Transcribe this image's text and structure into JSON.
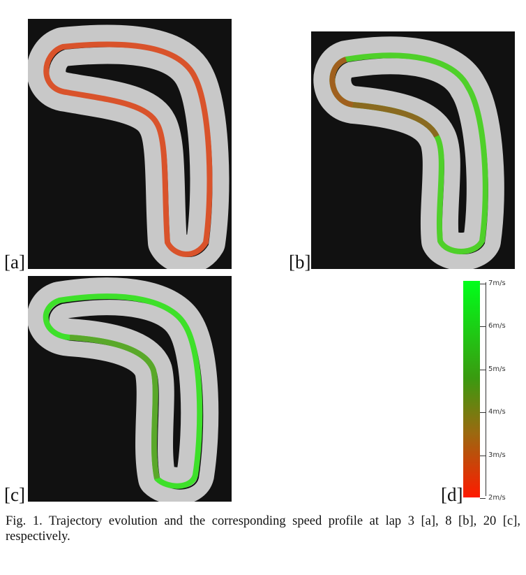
{
  "panels": [
    {
      "label": "[a]",
      "lap": 3,
      "description_color": "#d9532b"
    },
    {
      "label": "[b]",
      "lap": 8,
      "description_color": "#4fd02a"
    },
    {
      "label": "[c]",
      "lap": 20,
      "description_color": "#3ee02a"
    },
    {
      "label": "[d]"
    }
  ],
  "colorbar": {
    "min_color": "#ff1a00",
    "max_color": "#00ff1a",
    "ticks": [
      "7m/s",
      "6m/s",
      "5m/s",
      "4m/s",
      "3m/s",
      "2m/s"
    ]
  },
  "caption": "Fig. 1.   Trajectory evolution and the corresponding speed profile at lap 3 [a], 8 [b], 20 [c], respectively.",
  "colors": {
    "background": "#111111",
    "track": "#c8c8c8",
    "trajectory": "#000000"
  }
}
